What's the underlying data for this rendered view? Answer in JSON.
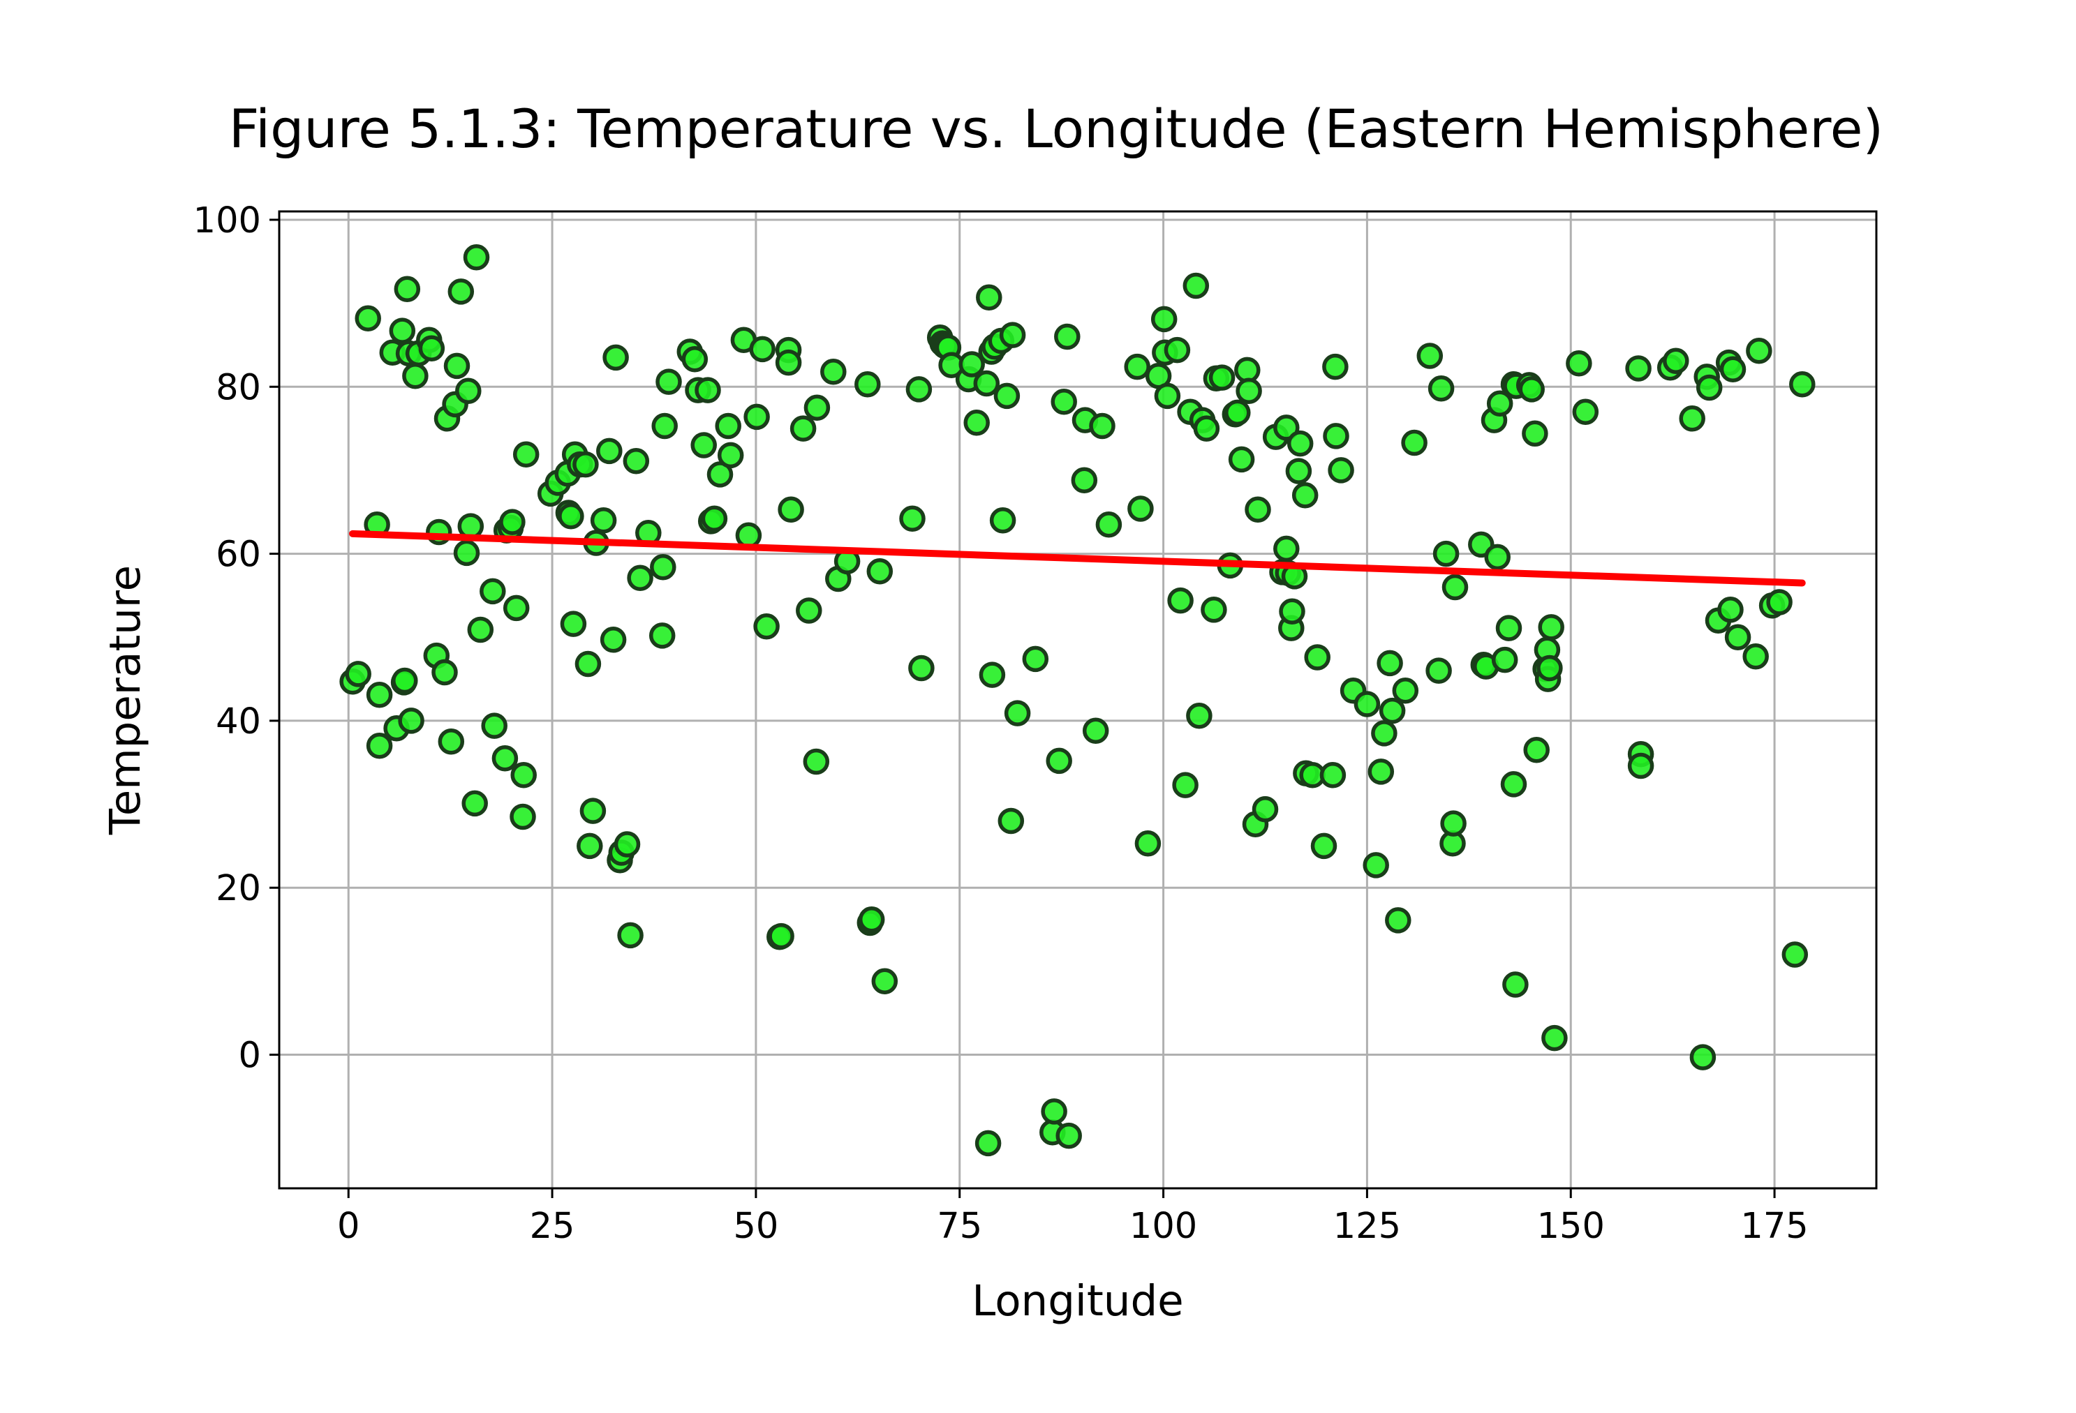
{
  "chart_data": {
    "type": "scatter",
    "title": "Figure 5.1.3: Temperature vs. Longitude (Eastern Hemisphere)",
    "xlabel": "Longitude",
    "ylabel": "Temperature",
    "xlim": [
      -8.5,
      187.5
    ],
    "ylim": [
      -16,
      101
    ],
    "xticks": [
      0,
      25,
      50,
      75,
      100,
      125,
      150,
      175
    ],
    "yticks": [
      0,
      20,
      40,
      60,
      80,
      100
    ],
    "grid": true,
    "legend": "none",
    "colors": {
      "point_fill": "#22ee22",
      "point_edge": "#1a3d1a",
      "regression": "#ff0000"
    },
    "points": [
      [
        0.5,
        44.7
      ],
      [
        1.2,
        45.6
      ],
      [
        2.4,
        88.2
      ],
      [
        3.5,
        63.5
      ],
      [
        3.8,
        43.1
      ],
      [
        3.8,
        37.0
      ],
      [
        5.4,
        84.1
      ],
      [
        5.9,
        39.1
      ],
      [
        6.6,
        86.7
      ],
      [
        6.8,
        44.6
      ],
      [
        6.9,
        44.8
      ],
      [
        7.2,
        91.7
      ],
      [
        7.4,
        84.0
      ],
      [
        7.7,
        40.0
      ],
      [
        8.2,
        81.3
      ],
      [
        8.6,
        84.0
      ],
      [
        9.9,
        85.6
      ],
      [
        10.2,
        84.6
      ],
      [
        10.8,
        47.8
      ],
      [
        11.1,
        62.6
      ],
      [
        11.8,
        45.8
      ],
      [
        12.1,
        76.2
      ],
      [
        12.6,
        37.5
      ],
      [
        13.1,
        77.9
      ],
      [
        13.3,
        82.5
      ],
      [
        13.8,
        91.4
      ],
      [
        14.5,
        60.1
      ],
      [
        14.7,
        79.5
      ],
      [
        15.0,
        63.3
      ],
      [
        15.5,
        30.1
      ],
      [
        15.7,
        95.5
      ],
      [
        16.2,
        50.9
      ],
      [
        17.7,
        55.5
      ],
      [
        17.9,
        39.4
      ],
      [
        19.2,
        35.5
      ],
      [
        19.4,
        62.8
      ],
      [
        19.9,
        63.1
      ],
      [
        20.1,
        63.8
      ],
      [
        20.6,
        53.5
      ],
      [
        21.4,
        28.5
      ],
      [
        21.5,
        33.5
      ],
      [
        21.8,
        71.9
      ],
      [
        24.8,
        67.2
      ],
      [
        25.7,
        68.5
      ],
      [
        26.9,
        69.6
      ],
      [
        27.0,
        64.9
      ],
      [
        27.3,
        64.5
      ],
      [
        27.6,
        51.6
      ],
      [
        27.8,
        71.9
      ],
      [
        28.4,
        70.7
      ],
      [
        29.1,
        70.7
      ],
      [
        29.4,
        46.8
      ],
      [
        29.6,
        25.0
      ],
      [
        30.0,
        29.2
      ],
      [
        30.4,
        61.3
      ],
      [
        31.3,
        64.0
      ],
      [
        32.0,
        72.3
      ],
      [
        32.5,
        49.7
      ],
      [
        32.8,
        83.5
      ],
      [
        33.3,
        23.3
      ],
      [
        33.5,
        24.2
      ],
      [
        34.2,
        25.2
      ],
      [
        34.6,
        14.3
      ],
      [
        35.3,
        71.1
      ],
      [
        35.8,
        57.1
      ],
      [
        36.8,
        62.5
      ],
      [
        38.5,
        50.2
      ],
      [
        38.6,
        58.4
      ],
      [
        38.8,
        75.3
      ],
      [
        39.3,
        80.6
      ],
      [
        41.9,
        84.2
      ],
      [
        42.5,
        83.3
      ],
      [
        42.9,
        79.6
      ],
      [
        43.6,
        73.0
      ],
      [
        44.1,
        79.6
      ],
      [
        44.5,
        63.9
      ],
      [
        44.9,
        64.2
      ],
      [
        45.6,
        69.5
      ],
      [
        46.6,
        75.3
      ],
      [
        46.9,
        71.8
      ],
      [
        48.5,
        85.6
      ],
      [
        49.1,
        62.2
      ],
      [
        50.1,
        76.4
      ],
      [
        50.8,
        84.5
      ],
      [
        51.3,
        51.3
      ],
      [
        52.9,
        14.1
      ],
      [
        53.1,
        14.2
      ],
      [
        54.0,
        84.4
      ],
      [
        54.0,
        82.9
      ],
      [
        54.3,
        65.3
      ],
      [
        55.8,
        75.0
      ],
      [
        56.5,
        53.2
      ],
      [
        57.4,
        35.1
      ],
      [
        57.5,
        77.5
      ],
      [
        59.5,
        81.8
      ],
      [
        60.1,
        57.0
      ],
      [
        61.2,
        59.1
      ],
      [
        63.7,
        80.3
      ],
      [
        64.0,
        15.8
      ],
      [
        64.2,
        16.2
      ],
      [
        65.2,
        57.9
      ],
      [
        65.8,
        8.8
      ],
      [
        69.2,
        64.2
      ],
      [
        70.0,
        79.7
      ],
      [
        70.3,
        46.3
      ],
      [
        72.6,
        85.9
      ],
      [
        72.9,
        85.2
      ],
      [
        73.2,
        84.9
      ],
      [
        73.6,
        84.7
      ],
      [
        74.0,
        82.6
      ],
      [
        76.1,
        80.9
      ],
      [
        76.5,
        82.7
      ],
      [
        77.1,
        75.7
      ],
      [
        78.3,
        80.4
      ],
      [
        78.5,
        -10.6
      ],
      [
        78.6,
        90.7
      ],
      [
        78.9,
        84.2
      ],
      [
        79.0,
        45.5
      ],
      [
        79.3,
        84.8
      ],
      [
        80.1,
        85.5
      ],
      [
        80.3,
        64.0
      ],
      [
        80.8,
        78.9
      ],
      [
        81.3,
        28.0
      ],
      [
        81.5,
        86.2
      ],
      [
        82.1,
        40.9
      ],
      [
        84.3,
        47.4
      ],
      [
        86.4,
        -9.3
      ],
      [
        86.6,
        -6.8
      ],
      [
        87.2,
        35.2
      ],
      [
        87.8,
        78.2
      ],
      [
        88.2,
        86.0
      ],
      [
        88.4,
        -9.7
      ],
      [
        90.3,
        68.8
      ],
      [
        90.4,
        76.0
      ],
      [
        91.7,
        38.8
      ],
      [
        92.5,
        75.3
      ],
      [
        93.3,
        63.5
      ],
      [
        96.8,
        82.4
      ],
      [
        97.2,
        65.4
      ],
      [
        98.1,
        25.3
      ],
      [
        99.4,
        81.3
      ],
      [
        100.1,
        88.1
      ],
      [
        100.2,
        84.1
      ],
      [
        100.5,
        78.9
      ],
      [
        101.7,
        84.4
      ],
      [
        102.1,
        54.4
      ],
      [
        102.7,
        32.3
      ],
      [
        103.3,
        77.0
      ],
      [
        104.0,
        92.1
      ],
      [
        104.4,
        40.6
      ],
      [
        104.8,
        76.0
      ],
      [
        105.3,
        75.0
      ],
      [
        106.2,
        53.3
      ],
      [
        106.5,
        81.0
      ],
      [
        107.2,
        81.1
      ],
      [
        108.2,
        58.6
      ],
      [
        108.8,
        76.7
      ],
      [
        109.1,
        76.9
      ],
      [
        109.6,
        71.3
      ],
      [
        110.3,
        82.0
      ],
      [
        110.5,
        79.5
      ],
      [
        111.3,
        27.6
      ],
      [
        111.6,
        65.3
      ],
      [
        112.5,
        29.4
      ],
      [
        113.8,
        74.0
      ],
      [
        114.6,
        57.8
      ],
      [
        115.1,
        60.6
      ],
      [
        115.1,
        75.1
      ],
      [
        115.3,
        57.7
      ],
      [
        115.7,
        51.1
      ],
      [
        115.8,
        53.1
      ],
      [
        116.1,
        57.3
      ],
      [
        116.6,
        69.9
      ],
      [
        116.8,
        73.2
      ],
      [
        117.4,
        67.0
      ],
      [
        117.5,
        33.7
      ],
      [
        118.3,
        33.5
      ],
      [
        118.9,
        47.6
      ],
      [
        119.7,
        25.0
      ],
      [
        120.8,
        33.5
      ],
      [
        121.1,
        82.4
      ],
      [
        121.2,
        74.1
      ],
      [
        121.8,
        70.0
      ],
      [
        123.3,
        43.6
      ],
      [
        125.0,
        42.0
      ],
      [
        126.1,
        22.7
      ],
      [
        126.7,
        33.9
      ],
      [
        127.1,
        38.5
      ],
      [
        127.8,
        46.9
      ],
      [
        128.1,
        41.2
      ],
      [
        128.8,
        16.1
      ],
      [
        129.7,
        43.6
      ],
      [
        130.8,
        73.3
      ],
      [
        132.7,
        83.7
      ],
      [
        133.8,
        46.0
      ],
      [
        134.1,
        79.8
      ],
      [
        134.7,
        60.0
      ],
      [
        135.5,
        25.3
      ],
      [
        135.6,
        27.7
      ],
      [
        135.8,
        56.0
      ],
      [
        139.0,
        61.1
      ],
      [
        139.3,
        46.7
      ],
      [
        139.6,
        46.5
      ],
      [
        140.6,
        76.0
      ],
      [
        141.0,
        59.6
      ],
      [
        141.3,
        78.0
      ],
      [
        141.9,
        47.3
      ],
      [
        142.4,
        51.1
      ],
      [
        143.0,
        80.3
      ],
      [
        143.0,
        32.4
      ],
      [
        143.2,
        8.4
      ],
      [
        143.3,
        80.1
      ],
      [
        144.9,
        80.2
      ],
      [
        145.2,
        79.7
      ],
      [
        145.6,
        74.4
      ],
      [
        145.8,
        36.5
      ],
      [
        146.9,
        46.2
      ],
      [
        147.1,
        48.5
      ],
      [
        147.2,
        45.0
      ],
      [
        147.4,
        46.3
      ],
      [
        147.6,
        51.2
      ],
      [
        148.0,
        2.0
      ],
      [
        151.0,
        82.8
      ],
      [
        151.8,
        77.0
      ],
      [
        158.3,
        82.2
      ],
      [
        158.6,
        36.0
      ],
      [
        158.6,
        34.6
      ],
      [
        162.2,
        82.3
      ],
      [
        162.9,
        83.1
      ],
      [
        164.9,
        76.2
      ],
      [
        166.2,
        -0.3
      ],
      [
        166.7,
        81.2
      ],
      [
        167.0,
        79.9
      ],
      [
        168.1,
        52.0
      ],
      [
        169.4,
        82.9
      ],
      [
        169.6,
        53.3
      ],
      [
        169.9,
        82.1
      ],
      [
        170.5,
        50.0
      ],
      [
        172.7,
        47.7
      ],
      [
        173.1,
        84.3
      ],
      [
        174.7,
        53.8
      ],
      [
        175.6,
        54.2
      ],
      [
        177.5,
        12.0
      ],
      [
        178.4,
        80.3
      ]
    ],
    "regression": {
      "x": [
        0.5,
        178.4
      ],
      "y": [
        62.4,
        56.5
      ]
    }
  }
}
